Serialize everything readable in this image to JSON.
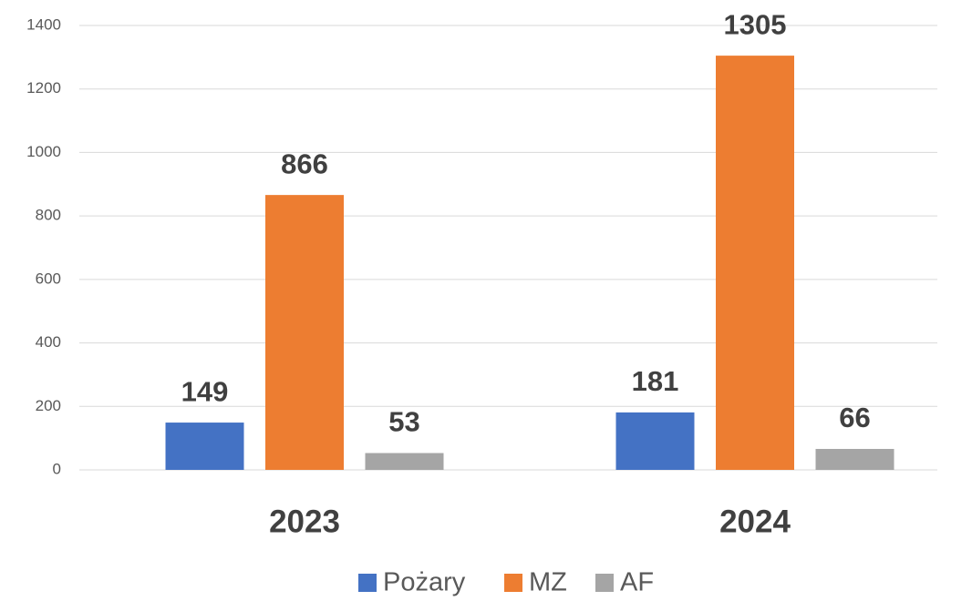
{
  "chart_data": {
    "type": "bar",
    "categories": [
      "2023",
      "2024"
    ],
    "series": [
      {
        "name": "Pożary",
        "color": "#4472c4",
        "values": [
          149,
          181
        ]
      },
      {
        "name": "MZ",
        "color": "#ed7d31",
        "values": [
          866,
          1305
        ]
      },
      {
        "name": "AF",
        "color": "#a5a5a5",
        "values": [
          53,
          66
        ]
      }
    ],
    "ylim": [
      0,
      1400
    ],
    "yticks": [
      0,
      200,
      400,
      600,
      800,
      1000,
      1200,
      1400
    ],
    "grid": true,
    "legend": "bottom"
  }
}
